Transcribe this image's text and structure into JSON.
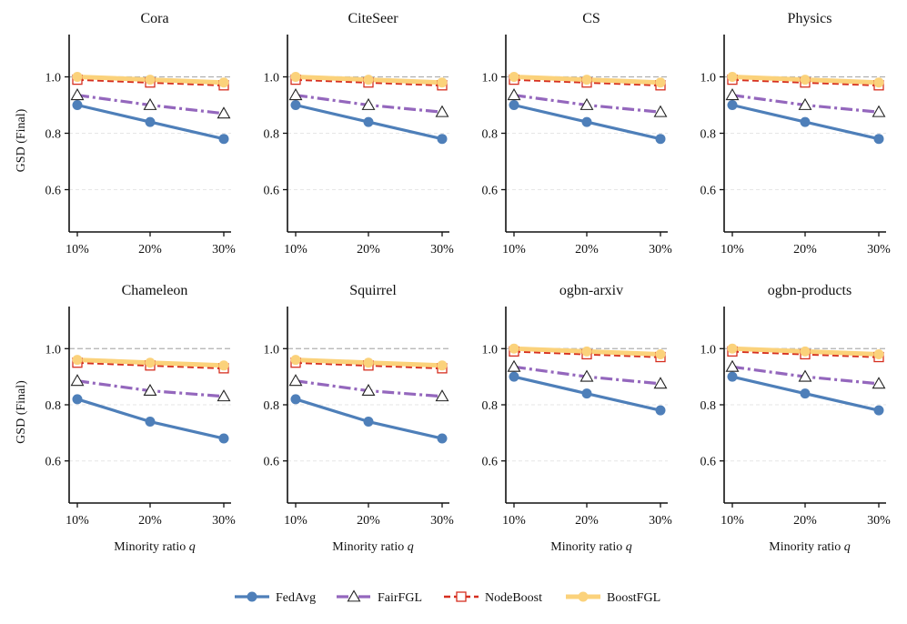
{
  "chart_data": {
    "type": "line",
    "ylabel": "GSD (Final)",
    "xlabel_prefix": "Minority ratio ",
    "xlabel_var": "q",
    "ylim": [
      0.45,
      1.15
    ],
    "yticks": [
      "0.6",
      "0.8",
      "1.0"
    ],
    "ytick_values": [
      0.6,
      0.8,
      1.0
    ],
    "reference_line": 1.0,
    "x": [
      "10%",
      "20%",
      "30%"
    ],
    "colors": {
      "FedAvg": "#4e7fb9",
      "FairFGL": "#9467bd",
      "NodeBoost": "#d62f20",
      "BoostFGL": "#fbd27b",
      "ref": "#b0b0b0",
      "grid": "#e6e6e6"
    },
    "legend": [
      "FedAvg",
      "FairFGL",
      "NodeBoost",
      "BoostFGL"
    ],
    "panels": [
      {
        "title": "Cora",
        "series": [
          {
            "name": "FedAvg",
            "values": [
              0.9,
              0.84,
              0.78
            ]
          },
          {
            "name": "FairFGL",
            "values": [
              0.935,
              0.9,
              0.87
            ]
          },
          {
            "name": "NodeBoost",
            "values": [
              0.99,
              0.98,
              0.97
            ]
          },
          {
            "name": "BoostFGL",
            "values": [
              1.0,
              0.99,
              0.98
            ]
          }
        ]
      },
      {
        "title": "CiteSeer",
        "series": [
          {
            "name": "FedAvg",
            "values": [
              0.9,
              0.84,
              0.78
            ]
          },
          {
            "name": "FairFGL",
            "values": [
              0.935,
              0.9,
              0.875
            ]
          },
          {
            "name": "NodeBoost",
            "values": [
              0.99,
              0.98,
              0.97
            ]
          },
          {
            "name": "BoostFGL",
            "values": [
              1.0,
              0.99,
              0.98
            ]
          }
        ]
      },
      {
        "title": "CS",
        "series": [
          {
            "name": "FedAvg",
            "values": [
              0.9,
              0.84,
              0.78
            ]
          },
          {
            "name": "FairFGL",
            "values": [
              0.935,
              0.9,
              0.875
            ]
          },
          {
            "name": "NodeBoost",
            "values": [
              0.99,
              0.98,
              0.97
            ]
          },
          {
            "name": "BoostFGL",
            "values": [
              1.0,
              0.99,
              0.98
            ]
          }
        ]
      },
      {
        "title": "Physics",
        "series": [
          {
            "name": "FedAvg",
            "values": [
              0.9,
              0.84,
              0.78
            ]
          },
          {
            "name": "FairFGL",
            "values": [
              0.935,
              0.9,
              0.875
            ]
          },
          {
            "name": "NodeBoost",
            "values": [
              0.99,
              0.98,
              0.97
            ]
          },
          {
            "name": "BoostFGL",
            "values": [
              1.0,
              0.99,
              0.98
            ]
          }
        ]
      },
      {
        "title": "Chameleon",
        "series": [
          {
            "name": "FedAvg",
            "values": [
              0.82,
              0.74,
              0.68
            ]
          },
          {
            "name": "FairFGL",
            "values": [
              0.885,
              0.85,
              0.83
            ]
          },
          {
            "name": "NodeBoost",
            "values": [
              0.95,
              0.94,
              0.93
            ]
          },
          {
            "name": "BoostFGL",
            "values": [
              0.96,
              0.95,
              0.94
            ]
          }
        ]
      },
      {
        "title": "Squirrel",
        "series": [
          {
            "name": "FedAvg",
            "values": [
              0.82,
              0.74,
              0.68
            ]
          },
          {
            "name": "FairFGL",
            "values": [
              0.885,
              0.85,
              0.83
            ]
          },
          {
            "name": "NodeBoost",
            "values": [
              0.95,
              0.94,
              0.93
            ]
          },
          {
            "name": "BoostFGL",
            "values": [
              0.96,
              0.95,
              0.94
            ]
          }
        ]
      },
      {
        "title": "ogbn-arxiv",
        "series": [
          {
            "name": "FedAvg",
            "values": [
              0.9,
              0.84,
              0.78
            ]
          },
          {
            "name": "FairFGL",
            "values": [
              0.935,
              0.9,
              0.875
            ]
          },
          {
            "name": "NodeBoost",
            "values": [
              0.99,
              0.98,
              0.97
            ]
          },
          {
            "name": "BoostFGL",
            "values": [
              1.0,
              0.99,
              0.98
            ]
          }
        ]
      },
      {
        "title": "ogbn-products",
        "series": [
          {
            "name": "FedAvg",
            "values": [
              0.9,
              0.84,
              0.78
            ]
          },
          {
            "name": "FairFGL",
            "values": [
              0.935,
              0.9,
              0.875
            ]
          },
          {
            "name": "NodeBoost",
            "values": [
              0.99,
              0.98,
              0.97
            ]
          },
          {
            "name": "BoostFGL",
            "values": [
              1.0,
              0.99,
              0.98
            ]
          }
        ]
      }
    ]
  }
}
